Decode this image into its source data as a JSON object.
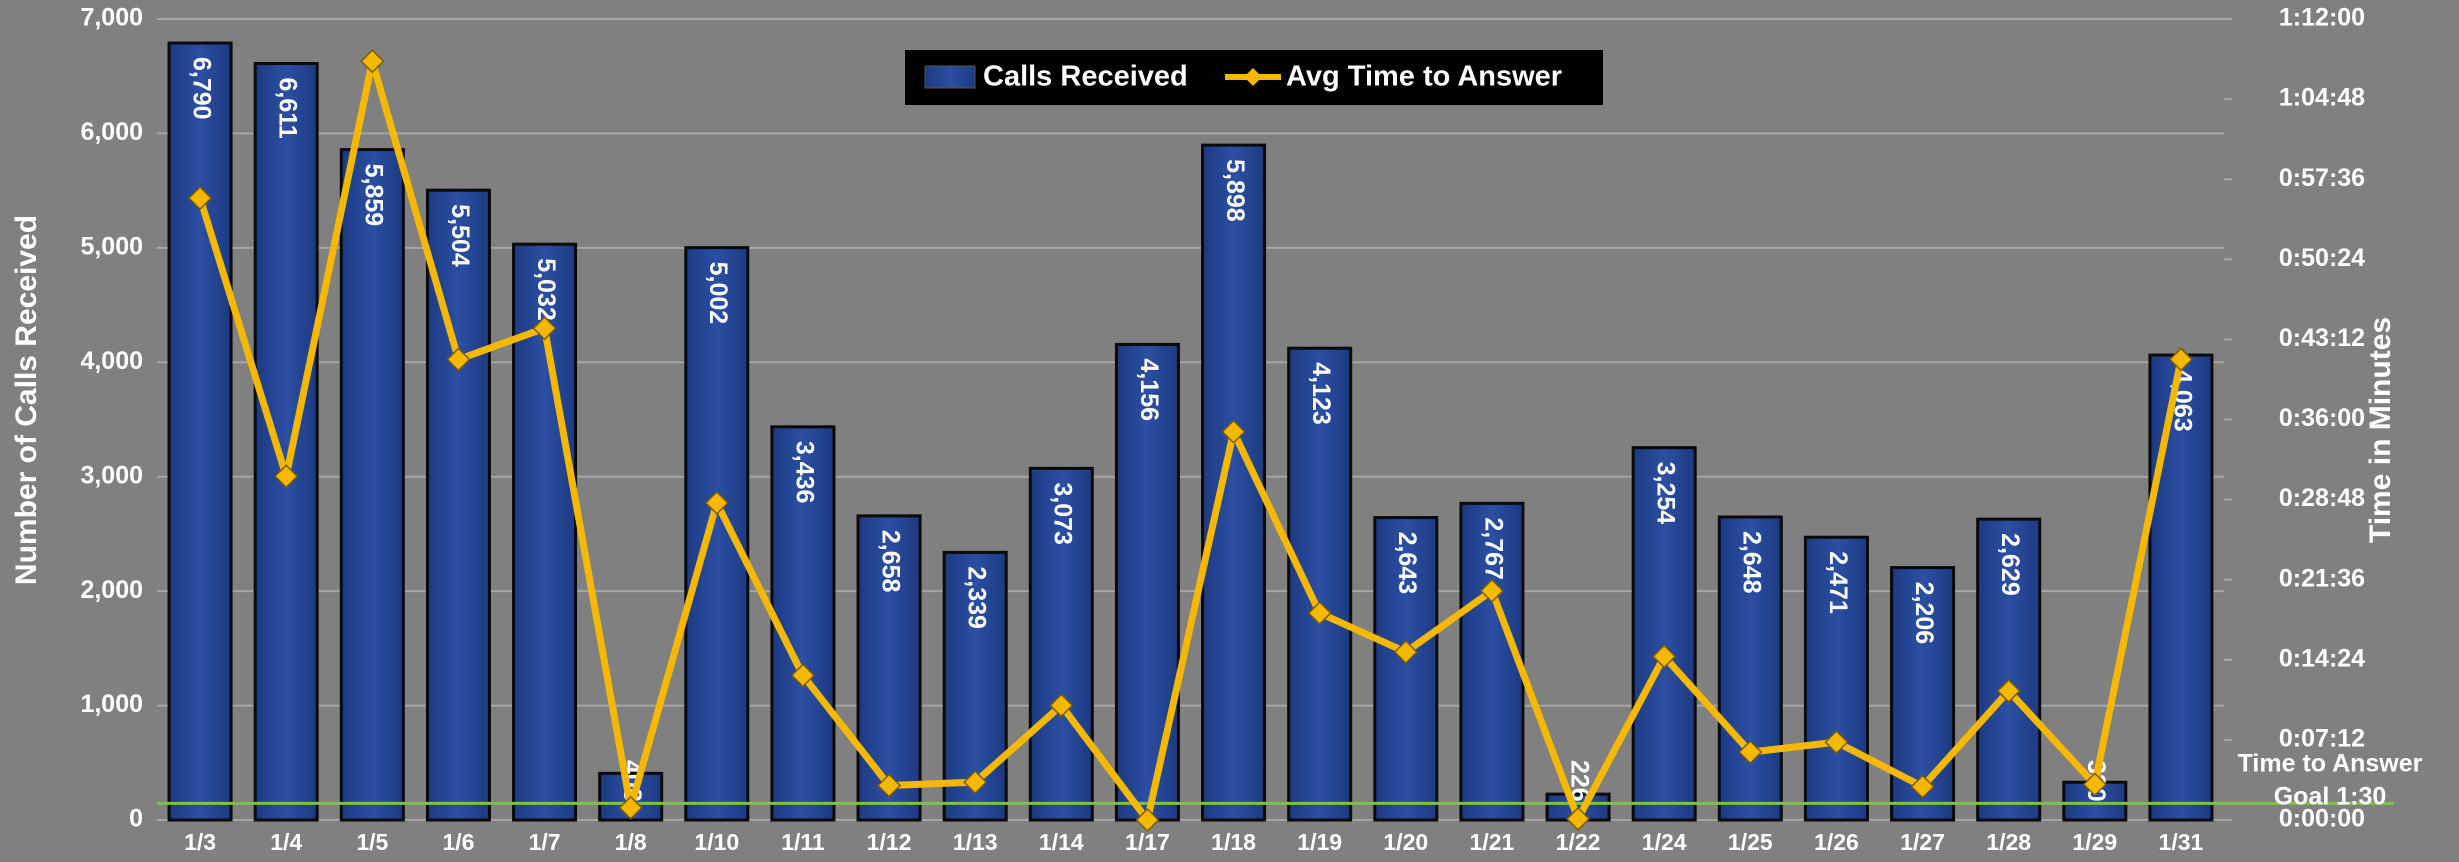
{
  "chart_data": {
    "type": "bar-line",
    "categories": [
      "1/3",
      "1/4",
      "1/5",
      "1/6",
      "1/7",
      "1/8",
      "1/10",
      "1/11",
      "1/12",
      "1/13",
      "1/14",
      "1/17",
      "1/18",
      "1/19",
      "1/20",
      "1/21",
      "1/22",
      "1/24",
      "1/25",
      "1/26",
      "1/27",
      "1/28",
      "1/29",
      "1/31"
    ],
    "series": [
      {
        "name": "Calls Received",
        "type": "bar",
        "color": "#2b4fa3",
        "values": [
          6790,
          6611,
          5859,
          5504,
          5032,
          408,
          5002,
          3436,
          2658,
          2339,
          3073,
          4156,
          5898,
          4123,
          2643,
          2767,
          226,
          3254,
          2648,
          2471,
          2206,
          2629,
          330,
          4063
        ],
        "value_labels": [
          "6,790",
          "6,611",
          "5,859",
          "5,504",
          "5,032",
          "408",
          "5,002",
          "3,436",
          "2,658",
          "2,339",
          "3,073",
          "4,156",
          "5,898",
          "4,123",
          "2,643",
          "2,767",
          "226",
          "3,254",
          "2,648",
          "2,471",
          "2,206",
          "2,629",
          "330",
          "4,063"
        ]
      },
      {
        "name": "Avg Time to Answer",
        "type": "line",
        "axis": "y2",
        "color": "#f5b800",
        "values": [
          55.9,
          30.9,
          68.2,
          41.4,
          44.2,
          1.1,
          28.5,
          13.0,
          3.1,
          3.4,
          10.3,
          0,
          34.9,
          18.6,
          15.1,
          20.6,
          0.1,
          14.7,
          6.1,
          7.0,
          3.0,
          11.6,
          3.2,
          41.4
        ]
      }
    ],
    "ylabel": "Number of Calls Received",
    "y2label": "Time in Minutes",
    "ylim": [
      0,
      7000
    ],
    "yticks": [
      0,
      {
        "value": 1000,
        "label": "1,000"
      },
      {
        "value": 2000,
        "label": "2,000"
      },
      {
        "value": 3000,
        "label": "3,000"
      },
      {
        "value": 4000,
        "label": "4,000"
      },
      {
        "value": 5000,
        "label": "5,000"
      },
      {
        "value": 6000,
        "label": "6,000"
      },
      {
        "value": 7000,
        "label": "7,000"
      }
    ],
    "y2lim": [
      0,
      72
    ],
    "y2ticks": [
      {
        "value": 0,
        "label": "0:00:00"
      },
      {
        "value": 7.2,
        "label": "0:07:12"
      },
      {
        "value": 14.4,
        "label": "0:14:24"
      },
      {
        "value": 21.6,
        "label": "0:21:36"
      },
      {
        "value": 28.8,
        "label": "0:28:48"
      },
      {
        "value": 36,
        "label": "0:36:00"
      },
      {
        "value": 43.2,
        "label": "0:43:12"
      },
      {
        "value": 50.4,
        "label": "0:50:24"
      },
      {
        "value": 57.6,
        "label": "0:57:36"
      },
      {
        "value": 64.8,
        "label": "1:04:48"
      },
      {
        "value": 72,
        "label": "1:12:00"
      }
    ],
    "goal": {
      "value": 1.5,
      "color": "#7fc241",
      "label": [
        "Time to Answer",
        "Goal 1:30"
      ]
    },
    "grid": true,
    "legend": "top"
  }
}
